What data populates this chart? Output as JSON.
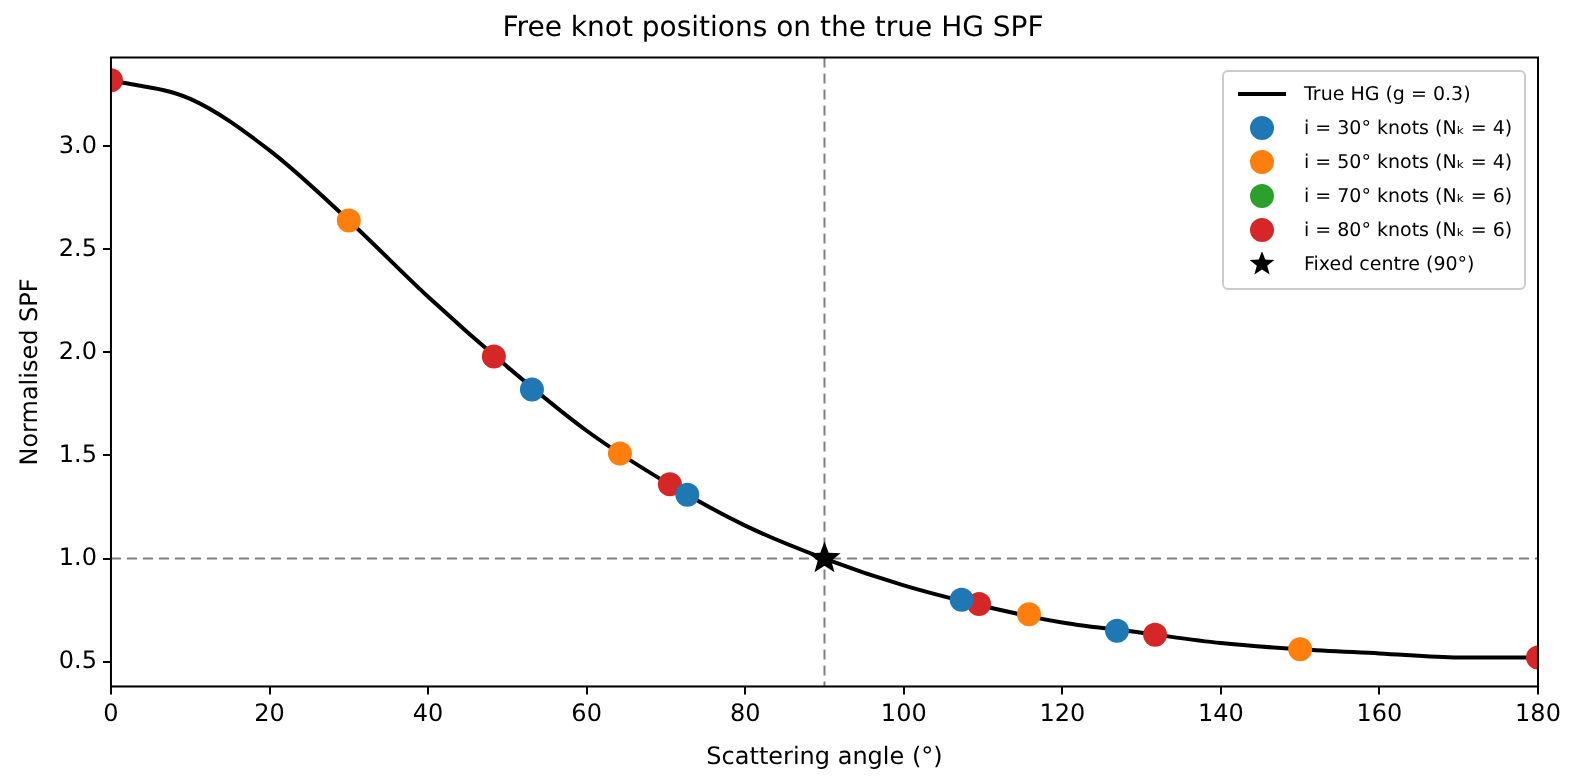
{
  "chart_data": {
    "type": "scatter",
    "title": "Free knot positions on the true HG SPF",
    "xlabel": "Scattering angle (°)",
    "ylabel": "Normalised SPF",
    "xlim": [
      0,
      180
    ],
    "xticks": [
      0,
      20,
      40,
      60,
      80,
      100,
      120,
      140,
      160,
      180
    ],
    "ylim": [
      0.38,
      3.43
    ],
    "yticks": [
      0.5,
      {
        "value": 1,
        "label": "1.0"
      },
      1.5,
      {
        "value": 2,
        "label": "2.0"
      },
      2.5,
      {
        "value": 3,
        "label": "3.0"
      }
    ],
    "grid": false,
    "legend": "top right",
    "ref_lines": [
      {
        "axis": "x",
        "value": 90,
        "color": "#808080",
        "line_style": "dashed"
      },
      {
        "axis": "y",
        "value": 1,
        "color": "#808080",
        "line_style": "dashed"
      }
    ],
    "series": [
      {
        "type": "line",
        "name": "True HG (g = 0.3)",
        "color": "#000000",
        "marker": "none",
        "x": [
          0,
          10,
          20,
          30,
          40,
          50,
          60,
          70,
          80,
          90,
          100,
          110,
          120,
          130,
          140,
          150,
          160,
          170,
          180
        ],
        "values": [
          3.32,
          3.23,
          2.98,
          2.64,
          2.27,
          1.93,
          1.62,
          1.37,
          1.16,
          1.0,
          0.87,
          0.77,
          0.69,
          0.64,
          0.59,
          0.56,
          0.54,
          0.52,
          0.52
        ]
      },
      {
        "name": "i = 30° knots (Nₖ = 4)",
        "color": "#1f77b4",
        "marker": "circle",
        "x": [
          53.1,
          72.7,
          107.3,
          126.9
        ],
        "values": [
          1.82,
          1.31,
          0.8,
          0.65
        ]
      },
      {
        "name": "i = 50° knots (Nₖ = 4)",
        "color": "#ff7f0e",
        "marker": "circle",
        "x": [
          30,
          64.2,
          115.8,
          150
        ],
        "values": [
          2.64,
          1.51,
          0.73,
          0.56
        ]
      },
      {
        "name": "i = 70° knots (Nₖ = 6)",
        "color": "#2ca02c",
        "marker": "circle"
      },
      {
        "name": "i = 80° knots (Nₖ = 6)",
        "color": "#d62728",
        "marker": "circle",
        "x": [
          0,
          48.3,
          70.5,
          109.5,
          131.7,
          180
        ],
        "values": [
          3.32,
          1.98,
          1.36,
          0.78,
          0.63,
          0.52
        ]
      },
      {
        "name": "Fixed centre (90°)",
        "color": "#000000",
        "marker": "star",
        "x": [
          90
        ],
        "values": [
          1.0
        ]
      }
    ]
  }
}
